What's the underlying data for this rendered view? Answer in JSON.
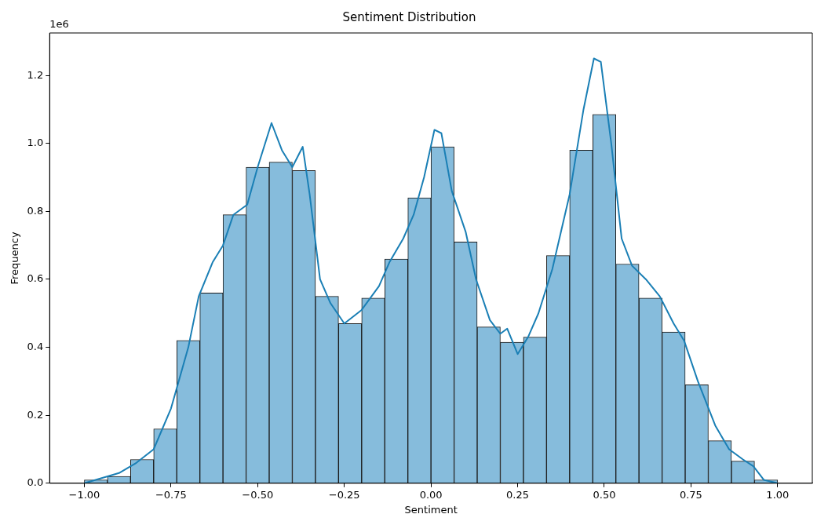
{
  "chart_data": {
    "type": "histogram",
    "title": "Sentiment Distribution",
    "xlabel": "Sentiment",
    "ylabel": "Frequency",
    "bins": [
      -1.0,
      -0.9333,
      -0.8667,
      -0.8,
      -0.7333,
      -0.6667,
      -0.6,
      -0.5333,
      -0.4667,
      -0.4,
      -0.3333,
      -0.2667,
      -0.2,
      -0.1333,
      -0.0667,
      0.0,
      0.0667,
      0.1333,
      0.2,
      0.2667,
      0.3333,
      0.4,
      0.4667,
      0.5333,
      0.6,
      0.6667,
      0.7333,
      0.8,
      0.8667,
      0.9333,
      1.0
    ],
    "values": [
      0.01,
      0.02,
      0.07,
      0.16,
      0.42,
      0.56,
      0.79,
      0.93,
      0.945,
      0.92,
      0.55,
      0.47,
      0.545,
      0.66,
      0.84,
      0.99,
      0.71,
      0.46,
      0.415,
      0.43,
      0.67,
      0.98,
      1.085,
      0.645,
      0.545,
      0.445,
      0.29,
      0.125,
      0.065,
      0.01
    ],
    "color": "#86bcdc",
    "series": [
      {
        "type": "line",
        "color": "#1a7fb5",
        "x": [
          -1.0,
          -0.95,
          -0.9,
          -0.85,
          -0.8,
          -0.75,
          -0.7,
          -0.67,
          -0.63,
          -0.6,
          -0.57,
          -0.53,
          -0.5,
          -0.46,
          -0.43,
          -0.4,
          -0.37,
          -0.35,
          -0.32,
          -0.29,
          -0.25,
          -0.2,
          -0.15,
          -0.12,
          -0.08,
          -0.05,
          -0.02,
          0.01,
          0.03,
          0.06,
          0.1,
          0.13,
          0.17,
          0.2,
          0.22,
          0.25,
          0.28,
          0.31,
          0.35,
          0.4,
          0.44,
          0.47,
          0.49,
          0.52,
          0.55,
          0.58,
          0.62,
          0.66,
          0.7,
          0.73,
          0.77,
          0.82,
          0.86,
          0.9,
          0.93,
          0.96,
          1.0
        ],
        "values": [
          0,
          0.015,
          0.03,
          0.06,
          0.1,
          0.22,
          0.4,
          0.55,
          0.65,
          0.7,
          0.79,
          0.82,
          0.93,
          1.06,
          0.98,
          0.93,
          0.99,
          0.85,
          0.6,
          0.53,
          0.47,
          0.51,
          0.58,
          0.65,
          0.72,
          0.79,
          0.9,
          1.04,
          1.03,
          0.86,
          0.74,
          0.6,
          0.48,
          0.44,
          0.455,
          0.38,
          0.43,
          0.5,
          0.63,
          0.85,
          1.1,
          1.25,
          1.24,
          1.0,
          0.72,
          0.64,
          0.6,
          0.55,
          0.47,
          0.42,
          0.3,
          0.17,
          0.1,
          0.07,
          0.05,
          0.01,
          0
        ]
      }
    ],
    "xlim": [
      -1.1,
      1.1
    ],
    "ylim": [
      0,
      1.325
    ],
    "xticks": [
      {
        "value": -1.0,
        "label": "−1.00"
      },
      {
        "value": -0.75,
        "label": "−0.75"
      },
      {
        "value": -0.5,
        "label": "−0.50"
      },
      {
        "value": -0.25,
        "label": "−0.25"
      },
      {
        "value": 0,
        "label": "0.00"
      },
      0.25,
      {
        "value": 0.5,
        "label": "0.50"
      },
      0.75,
      {
        "value": 1.0,
        "label": "1.00"
      }
    ],
    "yticks": [
      {
        "value": 0,
        "label": "0.0"
      },
      0.2,
      0.4,
      0.6,
      0.8,
      {
        "value": 1.0,
        "label": "1.0"
      },
      1.2
    ],
    "annotations": [
      "1e6"
    ],
    "grid": false,
    "legend": false
  }
}
